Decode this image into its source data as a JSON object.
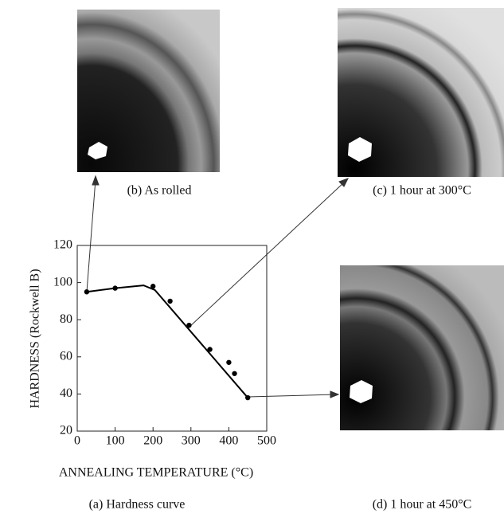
{
  "chart_data": {
    "type": "scatter",
    "x_label": "ANNEALING TEMPERATURE (°C)",
    "y_label": "HARDNESS (Rockwell B)",
    "caption": "(a) Hardness curve",
    "x": [
      25,
      100,
      200,
      245,
      295,
      350,
      400,
      415,
      450
    ],
    "values": [
      95,
      97,
      98,
      90,
      77,
      64,
      57,
      51,
      38
    ],
    "color": "#000000",
    "curve": {
      "type": "line",
      "x": [
        25,
        100,
        175,
        205,
        450
      ],
      "values": [
        95,
        97,
        98.5,
        96,
        38
      ]
    },
    "xlim": [
      0,
      500
    ],
    "xticks": [
      0,
      100,
      200,
      300,
      400,
      500
    ],
    "ylim": [
      20,
      120
    ],
    "yticks": [
      20,
      40,
      60,
      80,
      100,
      120
    ]
  },
  "panels": [
    {
      "caption": "(b) As rolled"
    },
    {
      "caption": "(c) 1 hour at 300°C"
    },
    {
      "caption": "(d) 1 hour at 450°C"
    }
  ]
}
